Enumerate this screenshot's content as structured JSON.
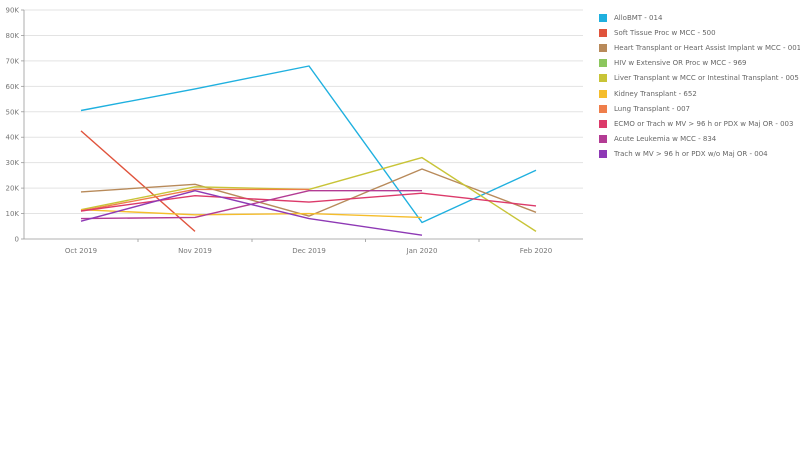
{
  "chart_data": {
    "type": "line",
    "title": "",
    "xlabel": "",
    "ylabel": "",
    "x": [
      "Oct 2019",
      "Nov 2019",
      "Dec 2019",
      "Jan 2020",
      "Feb 2020"
    ],
    "ylim": [
      0,
      90000
    ],
    "y_ticks": [
      {
        "value": 0,
        "label": "0"
      },
      {
        "value": 10000,
        "label": "10K"
      },
      {
        "value": 20000,
        "label": "20K"
      },
      {
        "value": 30000,
        "label": "30K"
      },
      {
        "value": 40000,
        "label": "40K"
      },
      {
        "value": 50000,
        "label": "50K"
      },
      {
        "value": 60000,
        "label": "60K"
      },
      {
        "value": 70000,
        "label": "70K"
      },
      {
        "value": 80000,
        "label": "80K"
      },
      {
        "value": 90000,
        "label": "90K"
      }
    ],
    "grid": true,
    "legend_position": "right",
    "series": [
      {
        "name": "AlloBMT  - 014",
        "color": "#1fb0df",
        "values": [
          50500,
          59000,
          68000,
          6500,
          27000
        ]
      },
      {
        "name": "Soft Tissue Proc w MCC - 500",
        "color": "#e0533c",
        "values": [
          42500,
          3000,
          null,
          null,
          null
        ]
      },
      {
        "name": "Heart Transplant or Heart Assist Implant w MCC - 001",
        "color": "#b88a5a",
        "values": [
          18500,
          21500,
          9000,
          27500,
          10500
        ]
      },
      {
        "name": "HIV w Extensive OR Proc w MCC - 969",
        "color": "#8cc65e",
        "values": [
          null,
          null,
          null,
          null,
          null
        ]
      },
      {
        "name": "Liver Transplant w MCC or Intestinal Transplant - 005",
        "color": "#c8c437",
        "values": [
          11500,
          20500,
          19500,
          32000,
          3000
        ]
      },
      {
        "name": "Kidney Transplant - 652",
        "color": "#f5bd2c",
        "values": [
          11500,
          9500,
          10000,
          8500,
          null
        ]
      },
      {
        "name": "Lung Transplant - 007",
        "color": "#ef7e4a",
        "values": [
          11000,
          19500,
          19500,
          null,
          null
        ]
      },
      {
        "name": "ECMO or Trach w MV > 96 h or PDX w Maj OR - 003",
        "color": "#dc3a6a",
        "values": [
          11000,
          17000,
          14500,
          18000,
          13000
        ]
      },
      {
        "name": "Acute Leukemia w MCC - 834",
        "color": "#b33b94",
        "values": [
          8000,
          8500,
          19000,
          19000,
          null
        ]
      },
      {
        "name": "Trach w MV > 96 h or PDX w/o Maj OR - 004",
        "color": "#8e39b5",
        "values": [
          7000,
          19000,
          8000,
          1500,
          null
        ]
      }
    ]
  }
}
